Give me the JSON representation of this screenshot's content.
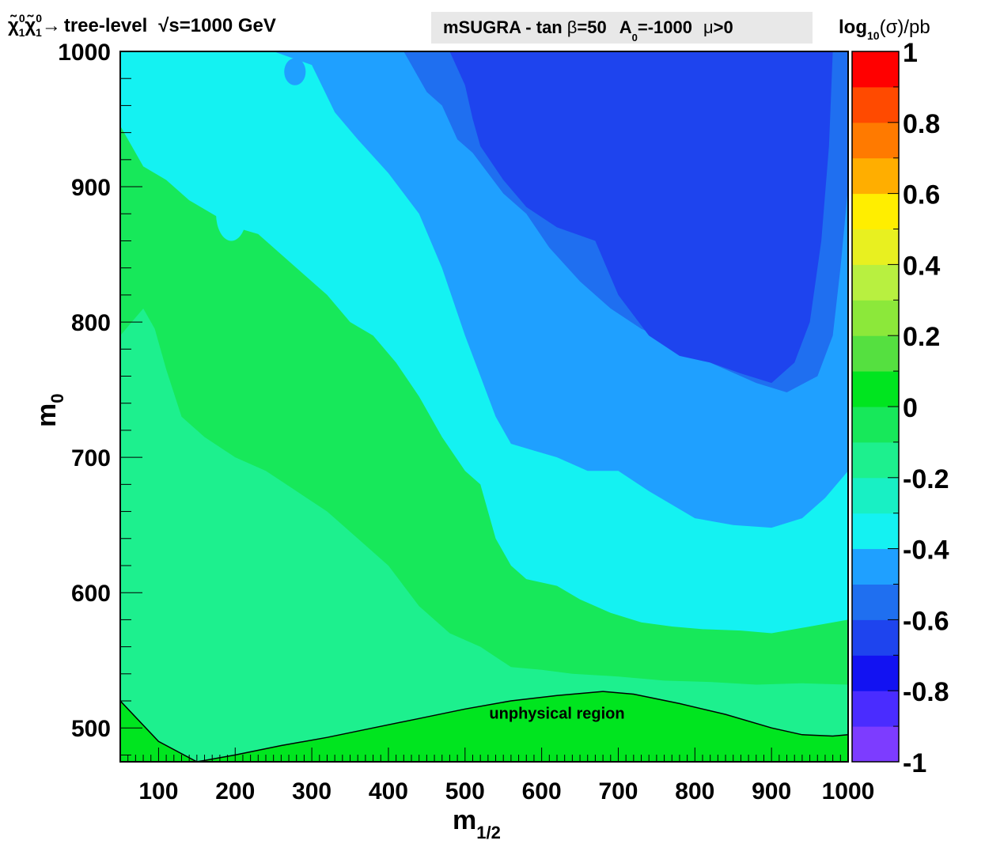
{
  "chart_data": {
    "type": "heatmap",
    "title_left": {
      "particle1": "χ̃",
      "particle1_sup": "0",
      "particle1_sub": "1",
      "particle2": "χ̃",
      "particle2_sup": "0",
      "particle2_sub": "1",
      "arrow": "→",
      "label": "tree-level",
      "sqrt": "√",
      "energy": "s=1000 GeV"
    },
    "title_right": {
      "model": "mSUGRA - tan",
      "beta": "β",
      "tanb": "=50",
      "a0_symbol": "A",
      "a0_sub": "0",
      "a0_value": "=-1000",
      "mu": "μ",
      "mu_sign": ">0"
    },
    "colorbar_title": {
      "prefix": "log",
      "sub": "10",
      "suffix": "(σ)/pb"
    },
    "xlabel": {
      "main": "m",
      "sub": "1/2"
    },
    "ylabel": {
      "main": "m",
      "sub": "0"
    },
    "xlim": [
      50,
      1000
    ],
    "ylim": [
      475,
      1000
    ],
    "x_ticks": [
      "100",
      "200",
      "300",
      "400",
      "500",
      "600",
      "700",
      "800",
      "900",
      "1000"
    ],
    "x_tick_values": [
      100,
      200,
      300,
      400,
      500,
      600,
      700,
      800,
      900,
      1000
    ],
    "y_ticks": [
      "500",
      "600",
      "700",
      "800",
      "900",
      "1000"
    ],
    "y_tick_values": [
      500,
      600,
      700,
      800,
      900,
      1000
    ],
    "z_range": [
      -1,
      1
    ],
    "z_ticks": [
      "1",
      "0.8",
      "0.6",
      "0.4",
      "0.2",
      "0",
      "-0.2",
      "-0.4",
      "-0.6",
      "-0.8",
      "-1"
    ],
    "z_tick_values": [
      1,
      0.8,
      0.6,
      0.4,
      0.2,
      0,
      -0.2,
      -0.4,
      -0.6,
      -0.8,
      -1
    ],
    "colorbar_levels": [
      {
        "from": -1.0,
        "color": "#7d3cff"
      },
      {
        "from": -0.9,
        "color": "#4a2cff"
      },
      {
        "from": -0.8,
        "color": "#1212f2"
      },
      {
        "from": -0.7,
        "color": "#1e44ee"
      },
      {
        "from": -0.6,
        "color": "#1f6ff0"
      },
      {
        "from": -0.5,
        "color": "#1fa0ff"
      },
      {
        "from": -0.4,
        "color": "#14f2f2"
      },
      {
        "from": -0.3,
        "color": "#18f0c4"
      },
      {
        "from": -0.2,
        "color": "#1df08e"
      },
      {
        "from": -0.1,
        "color": "#17e85a"
      },
      {
        "from": 0.0,
        "color": "#00e51f"
      },
      {
        "from": 0.1,
        "color": "#55e040"
      },
      {
        "from": 0.2,
        "color": "#8ce83a"
      },
      {
        "from": 0.3,
        "color": "#b8f040"
      },
      {
        "from": 0.4,
        "color": "#e8f020"
      },
      {
        "from": 0.5,
        "color": "#ffee00"
      },
      {
        "from": 0.6,
        "color": "#ffae00"
      },
      {
        "from": 0.7,
        "color": "#ff7a00"
      },
      {
        "from": 0.8,
        "color": "#ff4a00"
      },
      {
        "from": 0.9,
        "color": "#ff0000"
      }
    ],
    "contour_bands": [
      {
        "level": -0.1,
        "color": "#17e85a",
        "boundary": [
          [
            50,
            790
          ],
          [
            65,
            800
          ],
          [
            80,
            810
          ],
          [
            95,
            795
          ],
          [
            110,
            765
          ],
          [
            130,
            730
          ],
          [
            160,
            715
          ],
          [
            200,
            700
          ],
          [
            240,
            690
          ],
          [
            280,
            675
          ],
          [
            320,
            660
          ],
          [
            360,
            640
          ],
          [
            400,
            620
          ],
          [
            440,
            590
          ],
          [
            480,
            570
          ],
          [
            520,
            560
          ],
          [
            560,
            545
          ],
          [
            600,
            543
          ],
          [
            640,
            540
          ],
          [
            700,
            538
          ],
          [
            760,
            535
          ],
          [
            820,
            534
          ],
          [
            880,
            532
          ],
          [
            940,
            533
          ],
          [
            1000,
            532
          ]
        ]
      },
      {
        "level": -0.4,
        "color": "#14f2f2",
        "boundary": [
          [
            50,
            945
          ],
          [
            80,
            915
          ],
          [
            110,
            905
          ],
          [
            140,
            890
          ],
          [
            170,
            880
          ],
          [
            200,
            870
          ],
          [
            230,
            865
          ],
          [
            260,
            850
          ],
          [
            290,
            835
          ],
          [
            320,
            820
          ],
          [
            350,
            800
          ],
          [
            380,
            790
          ],
          [
            410,
            770
          ],
          [
            440,
            745
          ],
          [
            470,
            715
          ],
          [
            500,
            690
          ],
          [
            520,
            680
          ],
          [
            540,
            640
          ],
          [
            560,
            620
          ],
          [
            580,
            610
          ],
          [
            620,
            605
          ],
          [
            650,
            595
          ],
          [
            690,
            585
          ],
          [
            730,
            578
          ],
          [
            770,
            575
          ],
          [
            810,
            573
          ],
          [
            860,
            572
          ],
          [
            900,
            570
          ],
          [
            950,
            575
          ],
          [
            1000,
            580
          ]
        ]
      },
      {
        "level": -0.5,
        "color": "#1fa0ff",
        "boundary": [
          [
            250,
            1000
          ],
          [
            300,
            990
          ],
          [
            330,
            955
          ],
          [
            360,
            935
          ],
          [
            400,
            910
          ],
          [
            440,
            880
          ],
          [
            470,
            840
          ],
          [
            500,
            790
          ],
          [
            520,
            760
          ],
          [
            540,
            730
          ],
          [
            560,
            710
          ],
          [
            590,
            705
          ],
          [
            620,
            700
          ],
          [
            660,
            690
          ],
          [
            700,
            690
          ],
          [
            740,
            675
          ],
          [
            770,
            665
          ],
          [
            800,
            655
          ],
          [
            850,
            650
          ],
          [
            900,
            648
          ],
          [
            940,
            655
          ],
          [
            970,
            670
          ],
          [
            1000,
            690
          ]
        ]
      },
      {
        "level": -0.6,
        "color": "#1f6ff0",
        "boundary": [
          [
            420,
            1000
          ],
          [
            450,
            970
          ],
          [
            470,
            960
          ],
          [
            490,
            935
          ],
          [
            510,
            925
          ],
          [
            530,
            910
          ],
          [
            550,
            895
          ],
          [
            580,
            880
          ],
          [
            610,
            855
          ],
          [
            650,
            830
          ],
          [
            690,
            810
          ],
          [
            730,
            795
          ],
          [
            770,
            785
          ],
          [
            800,
            775
          ],
          [
            840,
            765
          ],
          [
            880,
            755
          ],
          [
            920,
            748
          ],
          [
            960,
            760
          ],
          [
            980,
            790
          ],
          [
            990,
            840
          ],
          [
            1000,
            900
          ]
        ]
      },
      {
        "level": -0.7,
        "color": "#1e44ee",
        "boundary": [
          [
            480,
            1000
          ],
          [
            500,
            975
          ],
          [
            510,
            950
          ],
          [
            520,
            930
          ],
          [
            550,
            905
          ],
          [
            580,
            885
          ],
          [
            620,
            870
          ],
          [
            670,
            860
          ],
          [
            700,
            820
          ],
          [
            740,
            790
          ],
          [
            780,
            775
          ],
          [
            820,
            770
          ],
          [
            860,
            762
          ],
          [
            900,
            755
          ],
          [
            930,
            770
          ],
          [
            950,
            800
          ],
          [
            965,
            860
          ],
          [
            975,
            930
          ],
          [
            980,
            1000
          ]
        ]
      }
    ],
    "islands": [
      {
        "color": "#14f2f2",
        "center": [
          195,
          880
        ],
        "radius": [
          20,
          20
        ]
      },
      {
        "color": "#1fa0ff",
        "center": [
          278,
          985
        ],
        "radius": [
          14,
          10
        ]
      },
      {
        "color": "#1e44ee",
        "center": [
          520,
          990
        ],
        "radius": [
          25,
          10
        ]
      }
    ],
    "unphysical_region": {
      "label": "unphysical region",
      "color": "#00e51f",
      "boundary": [
        [
          50,
          520
        ],
        [
          100,
          490
        ],
        [
          150,
          475
        ],
        [
          200,
          480
        ],
        [
          260,
          487
        ],
        [
          320,
          493
        ],
        [
          380,
          500
        ],
        [
          440,
          507
        ],
        [
          500,
          514
        ],
        [
          560,
          520
        ],
        [
          620,
          524
        ],
        [
          680,
          527
        ],
        [
          720,
          525
        ],
        [
          780,
          518
        ],
        [
          840,
          510
        ],
        [
          900,
          500
        ],
        [
          940,
          495
        ],
        [
          980,
          494
        ],
        [
          1000,
          495
        ]
      ]
    }
  }
}
